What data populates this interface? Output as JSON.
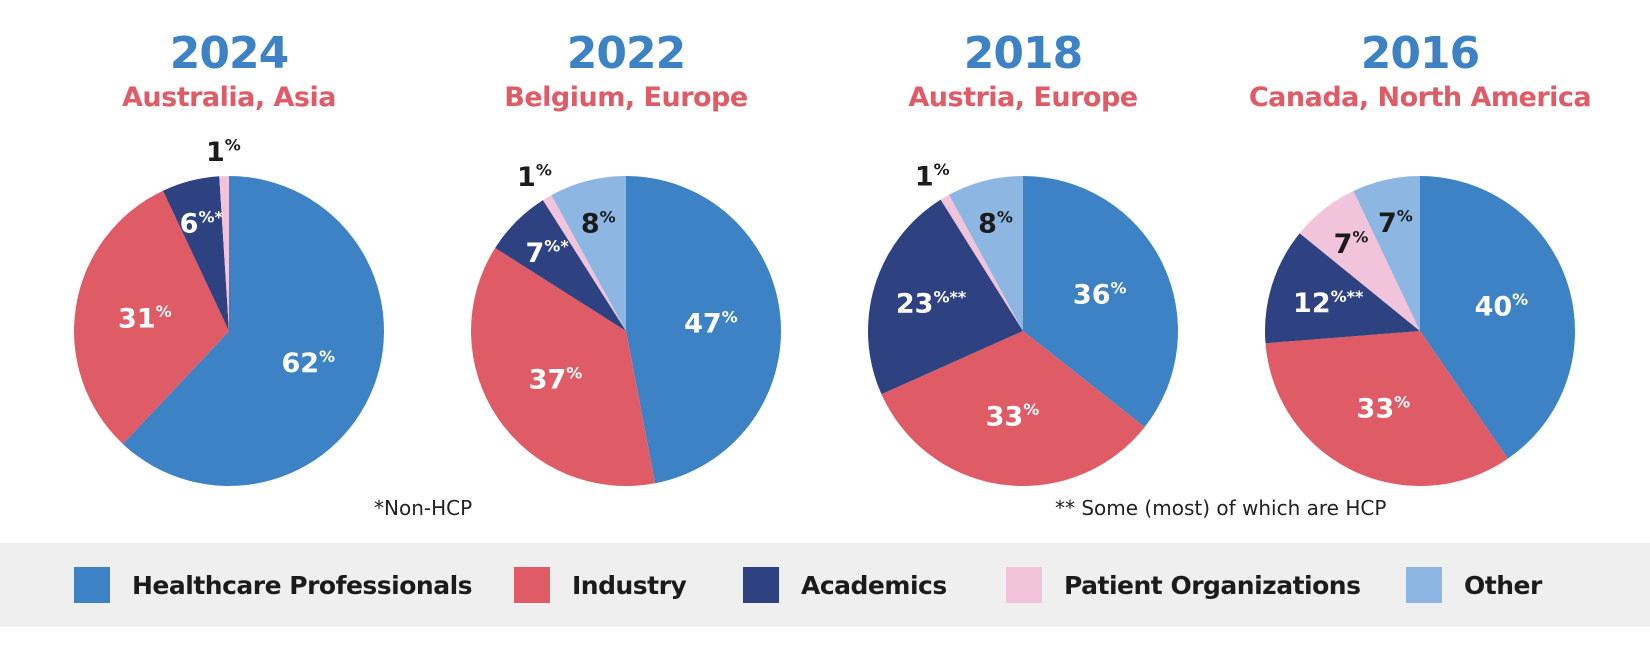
{
  "chart_data": [
    {
      "type": "pie",
      "title": "2024",
      "subtitle": "Australia, Asia",
      "slices": [
        {
          "name": "Healthcare Professionals",
          "value": 62,
          "label": "62",
          "suffix": "%"
        },
        {
          "name": "Industry",
          "value": 31,
          "label": "31",
          "suffix": "%"
        },
        {
          "name": "Academics",
          "value": 6,
          "label": "6",
          "suffix": "%*"
        },
        {
          "name": "Patient Organizations",
          "value": 1,
          "label": "1",
          "suffix": "%"
        }
      ]
    },
    {
      "type": "pie",
      "title": "2022",
      "subtitle": "Belgium, Europe",
      "slices": [
        {
          "name": "Healthcare Professionals",
          "value": 47,
          "label": "47",
          "suffix": "%"
        },
        {
          "name": "Industry",
          "value": 37,
          "label": "37",
          "suffix": "%"
        },
        {
          "name": "Academics",
          "value": 7,
          "label": "7",
          "suffix": "%*"
        },
        {
          "name": "Patient Organizations",
          "value": 1,
          "label": "1",
          "suffix": "%"
        },
        {
          "name": "Other",
          "value": 8,
          "label": "8",
          "suffix": "%"
        }
      ]
    },
    {
      "type": "pie",
      "title": "2018",
      "subtitle": "Austria, Europe",
      "slices": [
        {
          "name": "Healthcare Professionals",
          "value": 36,
          "label": "36",
          "suffix": "%"
        },
        {
          "name": "Industry",
          "value": 33,
          "label": "33",
          "suffix": "%"
        },
        {
          "name": "Academics",
          "value": 23,
          "label": "23",
          "suffix": "%**"
        },
        {
          "name": "Patient Organizations",
          "value": 1,
          "label": "1",
          "suffix": "%"
        },
        {
          "name": "Other",
          "value": 8,
          "label": "8",
          "suffix": "%"
        }
      ]
    },
    {
      "type": "pie",
      "title": "2016",
      "subtitle": "Canada, North America",
      "slices": [
        {
          "name": "Healthcare Professionals",
          "value": 40,
          "label": "40",
          "suffix": "%"
        },
        {
          "name": "Industry",
          "value": 33,
          "label": "33",
          "suffix": "%"
        },
        {
          "name": "Academics",
          "value": 12,
          "label": "12",
          "suffix": "%**"
        },
        {
          "name": "Patient Organizations",
          "value": 7,
          "label": "7",
          "suffix": "%"
        },
        {
          "name": "Other",
          "value": 7,
          "label": "7",
          "suffix": "%"
        }
      ]
    }
  ],
  "notes": {
    "non_hcp": "*Non-HCP",
    "hcp": "** Some (most) of which are HCP"
  },
  "legend": [
    {
      "name": "Healthcare Professionals",
      "color": "#3d82c4"
    },
    {
      "name": "Industry",
      "color": "#df5c67"
    },
    {
      "name": "Academics",
      "color": "#2e4181"
    },
    {
      "name": "Patient Organizations",
      "color": "#f2c4dc"
    },
    {
      "name": "Other",
      "color": "#8db6e3"
    }
  ],
  "colors": {
    "title": "#3d82c4",
    "subtitle": "#df5c67",
    "label_light": "#ffffff",
    "label_dark": "#1b1b1b"
  }
}
